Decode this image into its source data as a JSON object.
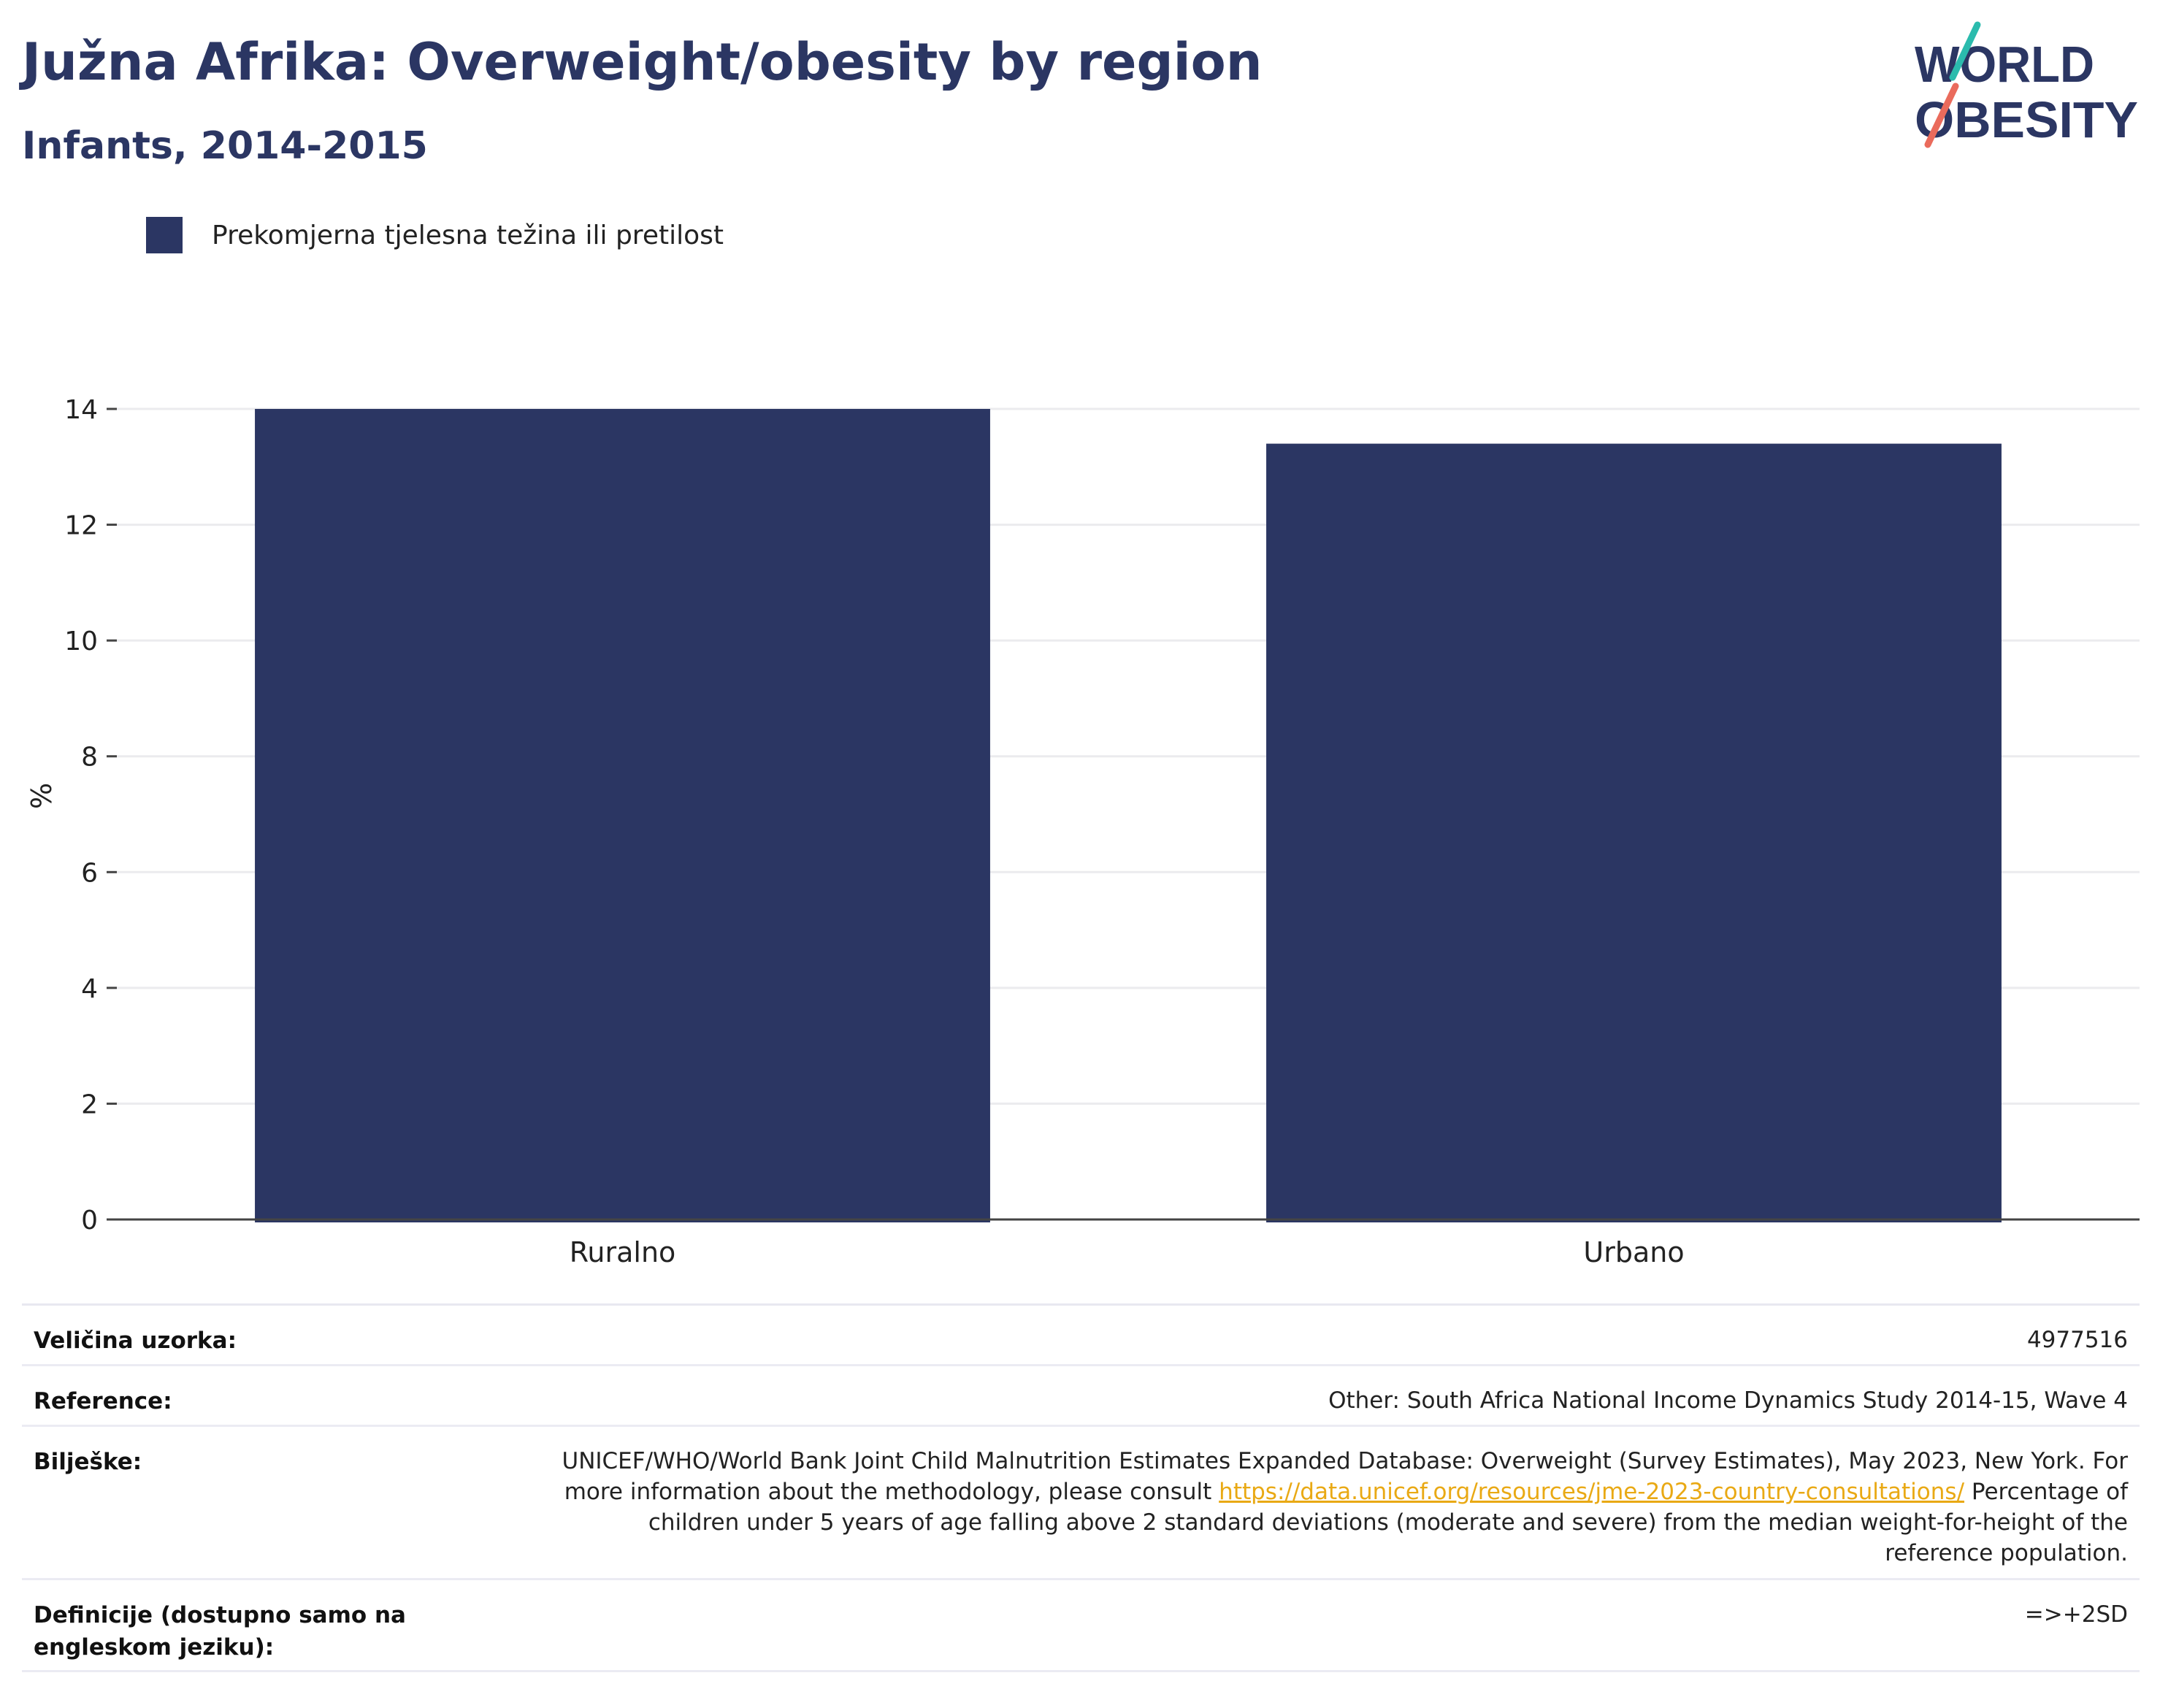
{
  "header": {
    "title": "Južna Afrika: Overweight/obesity by region",
    "subtitle": "Infants, 2014-2015",
    "logo_text": "WORLD OBESITY"
  },
  "legend": {
    "label": "Prekomjerna tjelesna težina ili pretilost",
    "color": "#2b3663"
  },
  "chart_data": {
    "type": "bar",
    "categories": [
      "Ruralno",
      "Urbano"
    ],
    "series": [
      {
        "name": "Prekomjerna tjelesna težina ili pretilost",
        "values": [
          14.0,
          13.4
        ],
        "color": "#2b3663"
      }
    ],
    "title": "Južna Afrika: Overweight/obesity by region",
    "subtitle": "Infants, 2014-2015",
    "xlabel": "",
    "ylabel": "%",
    "ylim": [
      0,
      14
    ],
    "yticks": [
      0,
      2,
      4,
      6,
      8,
      10,
      12,
      14
    ],
    "grid": true,
    "legend_position": "top-left"
  },
  "meta": {
    "sample_label": "Veličina uzorka:",
    "sample_value": "4977516",
    "reference_label": "Reference:",
    "reference_value": "Other: South Africa National Income Dynamics Study 2014-15, Wave 4",
    "notes_label": "Bilješke:",
    "notes_text_1": "UNICEF/WHO/World Bank Joint Child Malnutrition Estimates Expanded Database: Overweight (Survey Estimates), May 2023, New York. For more information about the methodology, please consult ",
    "notes_link": "https://data.unicef.org/resources/jme-2023-country-consultations/",
    "notes_text_2": " Percentage of children under 5 years of age falling above 2 standard deviations (moderate and severe) from the median weight-for-height of the reference population.",
    "definitions_label": "Definicije (dostupno samo na engleskom jeziku):",
    "definitions_value": "=>+2SD"
  },
  "colors": {
    "bar": "#2b3663",
    "title": "#2b3663",
    "link": "#e9a914",
    "logo_teal": "#2bbbad",
    "logo_coral": "#ea6b5c"
  }
}
